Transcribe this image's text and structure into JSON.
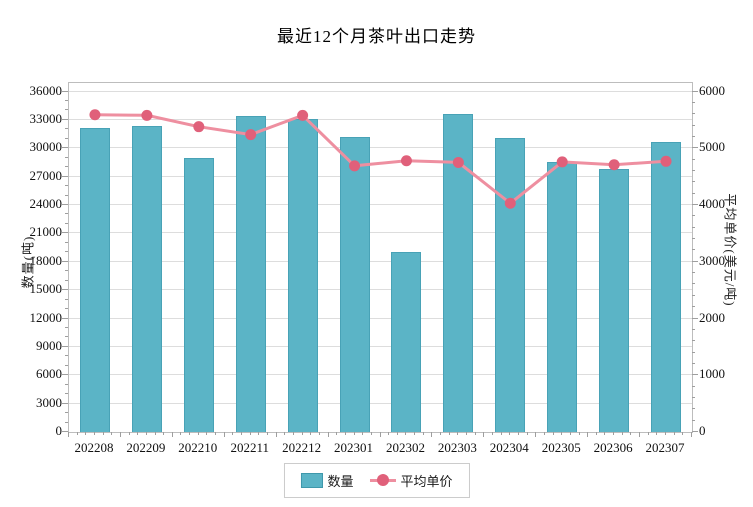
{
  "title": "最近12个月茶叶出口走势",
  "chart_data": {
    "type": "combo-bar-line",
    "categories": [
      "202208",
      "202209",
      "202210",
      "202211",
      "202212",
      "202301",
      "202302",
      "202303",
      "202304",
      "202305",
      "202306",
      "202307"
    ],
    "series": [
      {
        "name": "数量",
        "type": "bar",
        "axis": "left",
        "values": [
          32100,
          32400,
          29000,
          33400,
          33100,
          31200,
          19000,
          33600,
          31100,
          28600,
          27800,
          30700
        ]
      },
      {
        "name": "平均单价",
        "type": "line",
        "axis": "right",
        "values": [
          5590,
          5580,
          5380,
          5240,
          5580,
          4690,
          4780,
          4750,
          4030,
          4760,
          4710,
          4770
        ]
      }
    ],
    "title": "最近12个月茶叶出口走势",
    "left_axis": {
      "label": "数量(吨)",
      "min": 0,
      "max": 36000,
      "step": 3000,
      "ticks": [
        "0",
        "3000",
        "6000",
        "9000",
        "12000",
        "15000",
        "18000",
        "21000",
        "24000",
        "27000",
        "30000",
        "33000",
        "36000"
      ]
    },
    "right_axis": {
      "label": "平均单价(美元/吨)",
      "min": 0,
      "max": 6000,
      "step": 1000,
      "ticks": [
        "0",
        "1000",
        "2000",
        "3000",
        "4000",
        "5000",
        "6000"
      ]
    },
    "legend": {
      "position": "bottom",
      "items": [
        {
          "label": "数量",
          "marker": "bar-square"
        },
        {
          "label": "平均单价",
          "marker": "line-dot"
        }
      ]
    },
    "grid": true
  },
  "colors": {
    "bar": "#5bb4c6",
    "bar_border": "#48a2b6",
    "line": "#ee8fa0",
    "dot": "#e0607a",
    "grid": "#dddddd",
    "axis": "#9e9e9e",
    "text": "#1a1a1a",
    "legend_border": "#cccccc",
    "background": "#ffffff"
  }
}
